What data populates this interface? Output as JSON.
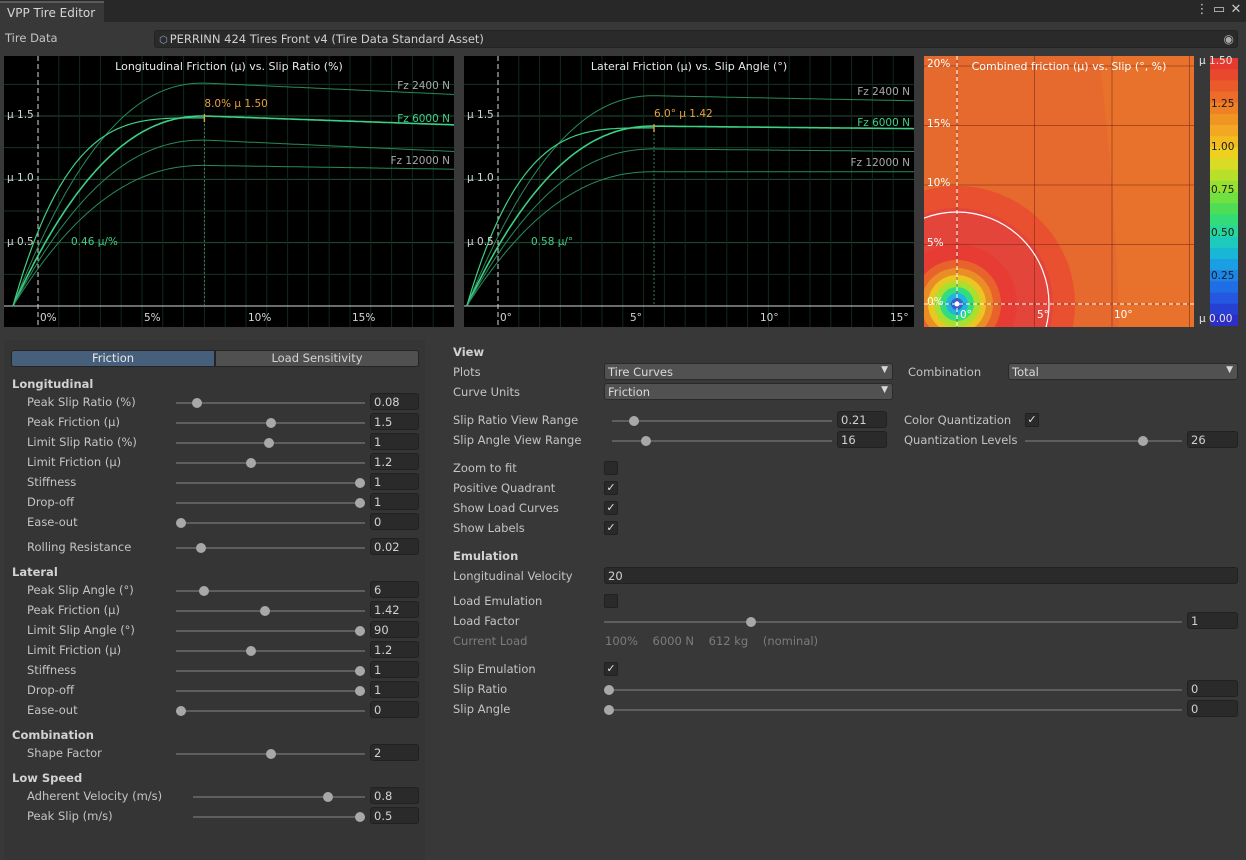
{
  "window": {
    "tab_title": "VPP Tire Editor"
  },
  "tire_data": {
    "label": "Tire Data",
    "value": "PERRINN 424 Tires Front v4 (Tire Data Standard Asset)"
  },
  "long_chart": {
    "chart_data": {
      "type": "line",
      "title": "Longitudinal Friction (μ) vs. Slip Ratio (%)",
      "x_ticks": [
        "0%",
        "5%",
        "10%",
        "15%"
      ],
      "y_ticks": [
        "μ 0.5",
        "μ 1.0",
        "μ 1.5"
      ],
      "xlim": [
        0,
        20
      ],
      "ylim": [
        0,
        2
      ],
      "series": [
        {
          "name": "Fz 2400 N",
          "peak_x": 8.0,
          "peak_y": 1.76,
          "end_y": 1.67
        },
        {
          "name": "Fz 6000 N",
          "peak_x": 8.0,
          "peak_y": 1.5,
          "end_y": 1.43
        },
        {
          "name": "",
          "peak_x": 8.0,
          "peak_y": 1.31,
          "end_y": 1.22
        },
        {
          "name": "Fz 12000 N",
          "peak_x": 8.0,
          "peak_y": 1.11,
          "end_y": 1.08
        }
      ],
      "peak_label": "8.0% μ 1.50",
      "slope_label": "0.46 μ/%"
    }
  },
  "lat_chart": {
    "chart_data": {
      "type": "line",
      "title": "Lateral Friction (μ) vs. Slip Angle (°)",
      "x_ticks": [
        "0°",
        "5°",
        "10°",
        "15°"
      ],
      "y_ticks": [
        "μ 0.5",
        "μ 1.0",
        "μ 1.5"
      ],
      "xlim": [
        0,
        16
      ],
      "ylim": [
        0,
        2
      ],
      "series": [
        {
          "name": "Fz 2400 N",
          "peak_x": 6.0,
          "peak_y": 1.66,
          "end_y": 1.62
        },
        {
          "name": "Fz 6000 N",
          "peak_x": 6.0,
          "peak_y": 1.42,
          "end_y": 1.4
        },
        {
          "name": "",
          "peak_x": 6.0,
          "peak_y": 1.24,
          "end_y": 1.22
        },
        {
          "name": "Fz 12000 N",
          "peak_x": 6.0,
          "peak_y": 1.06,
          "end_y": 1.06
        }
      ],
      "peak_label": "6.0° μ 1.42",
      "slope_label": "0.58 μ/°"
    }
  },
  "combined_chart": {
    "chart_data": {
      "type": "heatmap",
      "title": "Combined friction (μ) vs. Slip (°, %)",
      "x_ticks": [
        "0°",
        "5°",
        "10°"
      ],
      "y_ticks": [
        "0%",
        "5%",
        "10%",
        "15%",
        "20%"
      ],
      "scale_labels": [
        "μ 1.50",
        "1.25",
        "1.00",
        "0.75",
        "0.50",
        "0.25",
        "μ 0.00"
      ],
      "scale_range": [
        0,
        1.5
      ]
    }
  },
  "left": {
    "tabs": [
      "Friction",
      "Load Sensitivity"
    ],
    "longitudinal": {
      "title": "Longitudinal",
      "rows": [
        {
          "label": "Peak Slip Ratio (%)",
          "value": "0.08",
          "frac": 0.09
        },
        {
          "label": "Peak Friction (μ)",
          "value": "1.5",
          "frac": 0.5
        },
        {
          "label": "Limit Slip Ratio (%)",
          "value": "1",
          "frac": 0.49
        },
        {
          "label": "Limit Friction (μ)",
          "value": "1.2",
          "frac": 0.39
        },
        {
          "label": "Stiffness",
          "value": "1",
          "frac": 1.0
        },
        {
          "label": "Drop-off",
          "value": "1",
          "frac": 1.0
        },
        {
          "label": "Ease-out",
          "value": "0",
          "frac": 0.0
        },
        {
          "label": "Rolling Resistance",
          "value": "0.02",
          "frac": 0.11
        }
      ]
    },
    "lateral": {
      "title": "Lateral",
      "rows": [
        {
          "label": "Peak Slip Angle (°)",
          "value": "6",
          "frac": 0.13
        },
        {
          "label": "Peak Friction (μ)",
          "value": "1.42",
          "frac": 0.47
        },
        {
          "label": "Limit Slip Angle (°)",
          "value": "90",
          "frac": 1.0
        },
        {
          "label": "Limit Friction (μ)",
          "value": "1.2",
          "frac": 0.39
        },
        {
          "label": "Stiffness",
          "value": "1",
          "frac": 1.0
        },
        {
          "label": "Drop-off",
          "value": "1",
          "frac": 1.0
        },
        {
          "label": "Ease-out",
          "value": "0",
          "frac": 0.0
        }
      ]
    },
    "combination": {
      "title": "Combination",
      "rows": [
        {
          "label": "Shape Factor",
          "value": "2",
          "frac": 0.5
        }
      ]
    },
    "low_speed": {
      "title": "Low Speed",
      "rows": [
        {
          "label": "Adherent Velocity (m/s)",
          "value": "0.8",
          "frac": 0.8
        },
        {
          "label": "Peak Slip (m/s)",
          "value": "0.5",
          "frac": 1.0
        }
      ]
    }
  },
  "view": {
    "title": "View",
    "plots_label": "Plots",
    "plots_value": "Tire Curves",
    "combination_label": "Combination",
    "combination_value": "Total",
    "curve_units_label": "Curve Units",
    "curve_units_value": "Friction",
    "slip_ratio_range_label": "Slip Ratio View Range",
    "slip_ratio_range_value": "0.21",
    "slip_ratio_range_frac": 0.08,
    "slip_angle_range_label": "Slip Angle View Range",
    "slip_angle_range_value": "16",
    "slip_angle_range_frac": 0.14,
    "color_quant_label": "Color Quantization",
    "color_quant_checked": true,
    "quant_levels_label": "Quantization Levels",
    "quant_levels_value": "26",
    "quant_levels_frac": 0.77,
    "zoom_label": "Zoom to fit",
    "zoom_checked": false,
    "positive_label": "Positive Quadrant",
    "positive_checked": true,
    "load_curves_label": "Show Load Curves",
    "load_curves_checked": true,
    "labels_label": "Show Labels",
    "labels_checked": true
  },
  "emulation": {
    "title": "Emulation",
    "long_vel_label": "Longitudinal Velocity",
    "long_vel_value": "20",
    "load_emu_label": "Load Emulation",
    "load_emu_checked": false,
    "load_factor_label": "Load Factor",
    "load_factor_value": "1",
    "load_factor_frac": 0.25,
    "current_load_label": "Current Load",
    "current_load_value": "100%    6000 N    612 kg    (nominal)",
    "slip_emu_label": "Slip Emulation",
    "slip_emu_checked": true,
    "slip_ratio_label": "Slip Ratio",
    "slip_ratio_value": "0",
    "slip_ratio_frac": 0.0,
    "slip_angle_label": "Slip Angle",
    "slip_angle_value": "0",
    "slip_angle_frac": 0.0
  },
  "colors": {
    "curve": "#3fcf84",
    "curve_dim": "#2a8a5a",
    "peak": "#e9a03c",
    "grid": "#1f4f36",
    "accent": "#46607c"
  }
}
